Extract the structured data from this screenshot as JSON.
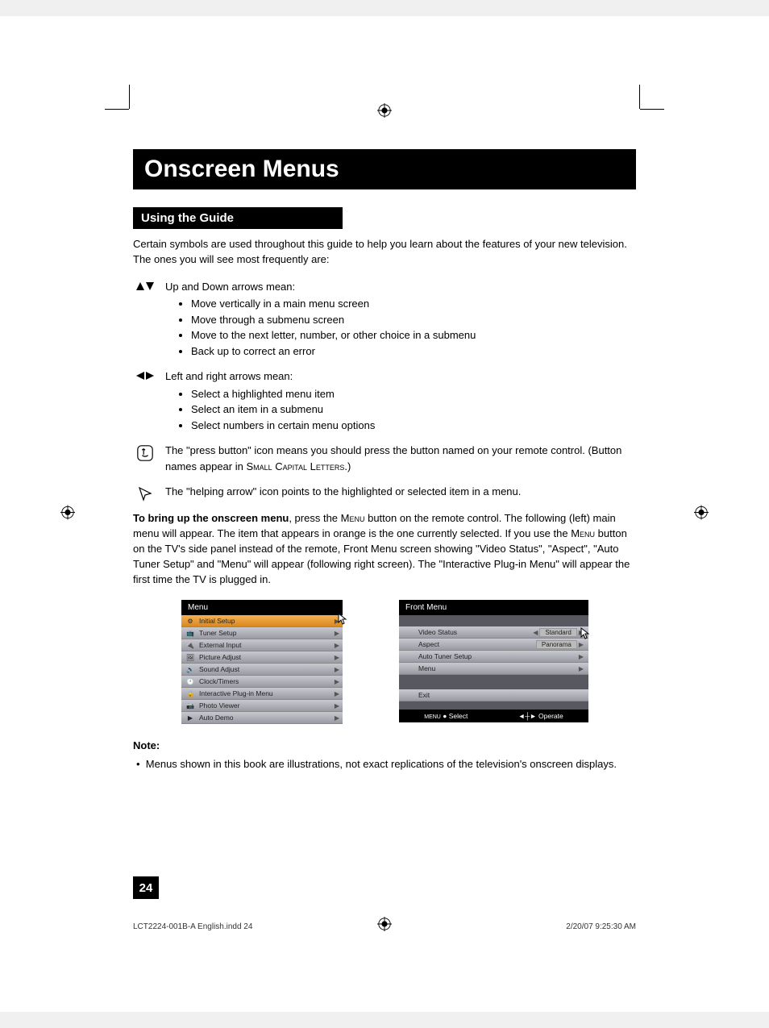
{
  "page": {
    "title": "Onscreen Menus",
    "subtitle": "Using the Guide",
    "intro": "Certain symbols are used throughout this guide to help you learn about the features of your new television. The ones you will see most frequently are:",
    "updown": {
      "lead": "Up and Down arrows mean:",
      "items": [
        "Move vertically in a main menu screen",
        "Move through a submenu screen",
        "Move to the next letter, number, or other choice in a submenu",
        "Back up to correct an error"
      ]
    },
    "leftright": {
      "lead": "Left and right arrows mean:",
      "items": [
        "Select a highlighted menu item",
        "Select an item in a submenu",
        "Select numbers in certain menu options"
      ]
    },
    "press_button": {
      "text_a": "The \"press button\" icon means you should press the button named on your remote control. (Button names appear in ",
      "text_b": "Small Capital Letters",
      "text_c": ".)"
    },
    "helping_arrow": "The \"helping arrow\" icon points to the highlighted or selected item in a menu.",
    "main_para": {
      "bold": "To bring up the onscreen menu",
      "a": ", press the ",
      "menu1": "Menu",
      "b": " button on the remote control. The following (left) main menu will appear.  The item that appears in orange is the one currently selected. If you use the ",
      "menu2": "Menu",
      "c": " button on the TV's side panel instead of the remote, Front Menu screen showing \"Video Status\", \"Aspect\", \"Auto Tuner Setup\" and \"Menu\" will appear (following right screen). The \"Interactive Plug-in Menu\" will appear the first time the TV is plugged in."
    },
    "note_label": "Note:",
    "note_text": "Menus shown in this book are illustrations, not exact replications of the television's onscreen displays.",
    "page_number": "24",
    "footer_left": "LCT2224-001B-A English.indd   24",
    "footer_right": "2/20/07   9:25:30 AM"
  },
  "main_menu": {
    "title": "Menu",
    "items": [
      {
        "icon": "⚙",
        "label": "Initial Setup",
        "selected": true
      },
      {
        "icon": "📺",
        "label": "Tuner Setup"
      },
      {
        "icon": "🔌",
        "label": "External Input"
      },
      {
        "icon": "🖼",
        "label": "Picture Adjust"
      },
      {
        "icon": "🔊",
        "label": "Sound Adjust"
      },
      {
        "icon": "🕐",
        "label": "Clock/Timers"
      },
      {
        "icon": "🔒",
        "label": "Interactive Plug-in Menu"
      },
      {
        "icon": "📷",
        "label": "Photo Viewer"
      },
      {
        "icon": "▶",
        "label": "Auto Demo"
      }
    ]
  },
  "front_menu": {
    "title": "Front Menu",
    "rows": [
      {
        "label": "Video Status",
        "value": "Standard",
        "left_arrow": true,
        "right_arrow": true
      },
      {
        "label": "Aspect",
        "value": "Panorama"
      },
      {
        "label": "Auto Tuner Setup",
        "right_arrow": true
      },
      {
        "label": "Menu",
        "right_arrow": true
      }
    ],
    "exit": "Exit",
    "footer_select": "Select",
    "footer_operate": "Operate"
  },
  "colors": {
    "black": "#000000",
    "orange_sel": "#e89830",
    "menu_bg": "#585860"
  }
}
